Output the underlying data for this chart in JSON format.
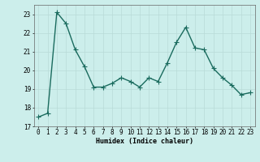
{
  "x": [
    0,
    1,
    2,
    3,
    4,
    5,
    6,
    7,
    8,
    9,
    10,
    11,
    12,
    13,
    14,
    15,
    16,
    17,
    18,
    19,
    20,
    21,
    22,
    23
  ],
  "y": [
    17.5,
    17.7,
    23.1,
    22.5,
    21.1,
    20.2,
    19.1,
    19.1,
    19.3,
    19.6,
    19.4,
    19.1,
    19.6,
    19.4,
    20.4,
    21.5,
    22.3,
    21.2,
    21.1,
    20.1,
    19.6,
    19.2,
    18.7,
    18.8
  ],
  "xlabel": "Humidex (Indice chaleur)",
  "ylim": [
    17,
    23.5
  ],
  "xlim": [
    -0.5,
    23.5
  ],
  "yticks": [
    17,
    18,
    19,
    20,
    21,
    22,
    23
  ],
  "xticks": [
    0,
    1,
    2,
    3,
    4,
    5,
    6,
    7,
    8,
    9,
    10,
    11,
    12,
    13,
    14,
    15,
    16,
    17,
    18,
    19,
    20,
    21,
    22,
    23
  ],
  "line_color": "#1a6b5e",
  "bg_color": "#cceeeb",
  "grid_color": "#b8dbd7",
  "markersize": 2.0,
  "linewidth": 1.0,
  "tick_fontsize": 5.5,
  "xlabel_fontsize": 6.0
}
